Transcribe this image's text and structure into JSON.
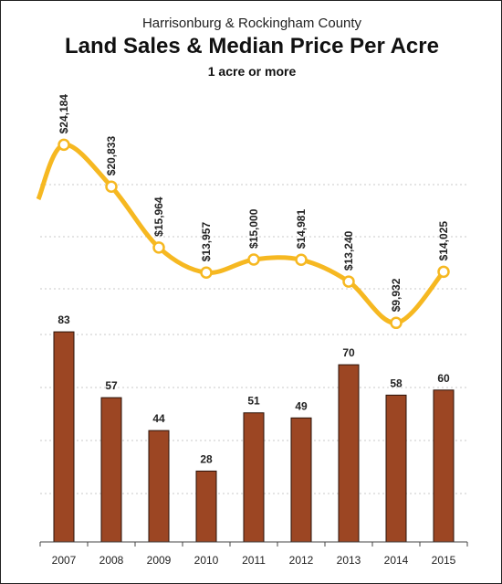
{
  "chart_data": {
    "type": "bar+line",
    "supertitle": "Harrisonburg & Rockingham County",
    "title": "Land Sales & Median Price Per Acre",
    "subtitle": "1 acre or more",
    "categories": [
      "2007",
      "2008",
      "2009",
      "2010",
      "2011",
      "2012",
      "2013",
      "2014",
      "2015"
    ],
    "series": [
      {
        "type": "line",
        "values": [
          24184,
          20833,
          15964,
          13957,
          15000,
          14981,
          13240,
          9932,
          14025
        ],
        "labels": [
          "$24,184",
          "$20,833",
          "$15,964",
          "$13,957",
          "$15,000",
          "$14,981",
          "$13,240",
          "$9,932",
          "$14,025"
        ],
        "color": "#f6b821"
      },
      {
        "type": "bar",
        "values": [
          83,
          57,
          44,
          28,
          51,
          49,
          70,
          58,
          60
        ],
        "labels": [
          "83",
          "57",
          "44",
          "28",
          "51",
          "49",
          "70",
          "58",
          "60"
        ],
        "color": "#9c4623"
      }
    ],
    "grid": true
  }
}
